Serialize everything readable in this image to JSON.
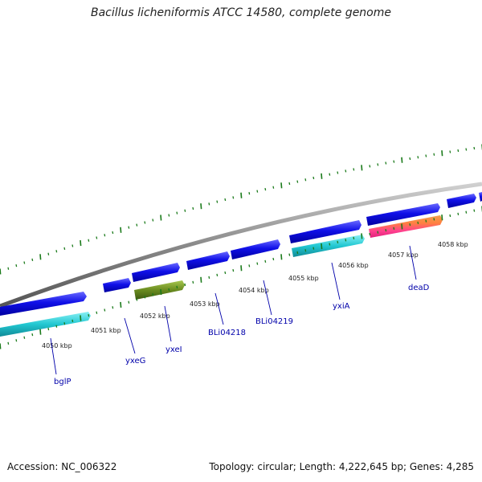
{
  "title": "Bacillus licheniformis ATCC 14580, complete genome",
  "footer": {
    "accession": "Accession: NC_006322",
    "summary": "Topology: circular; Length: 4,222,645 bp; Genes: 4,285"
  },
  "kbp_labels": [
    "4050 kbp",
    "4051 kbp",
    "4052 kbp",
    "4053 kbp",
    "4054 kbp",
    "4055 kbp",
    "4056 kbp",
    "4057 kbp",
    "4058 kbp"
  ],
  "gene_labels": [
    "bglP",
    "yxeG",
    "yxeI",
    "BLi04218",
    "BLi04219",
    "yxiA",
    "deaD"
  ],
  "colors": {
    "backbone": "#8a8a8a",
    "cds_forward": "#1010e0",
    "cds_reverse": "#20c8d0",
    "yxeI": "#6a8c20",
    "deaD": "#ff5080",
    "ticks": "#1a7a1a",
    "label_lines": "#0000aa"
  }
}
